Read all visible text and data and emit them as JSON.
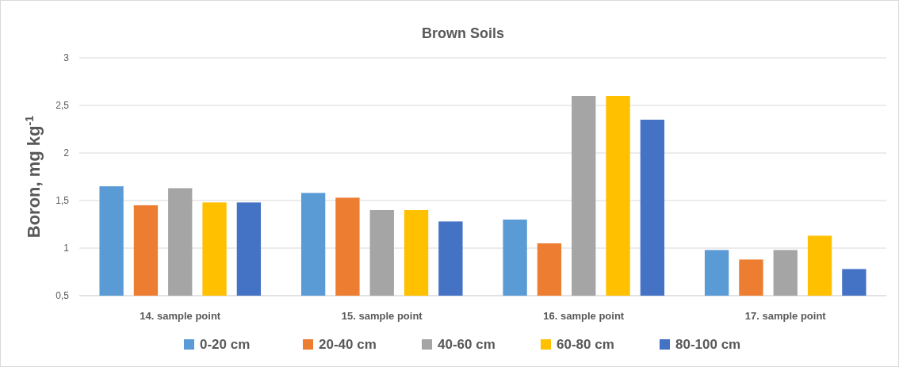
{
  "chart_data": {
    "type": "bar",
    "title": "Brown Soils",
    "ylabel": "Boron, mg kg$^{-1}$",
    "categories": [
      "14. sample point",
      "15. sample point",
      "16. sample point",
      "17. sample point"
    ],
    "series": [
      {
        "name": "0-20 cm",
        "color": "#5b9bd5",
        "values": [
          1.65,
          1.58,
          1.3,
          0.98
        ]
      },
      {
        "name": "20-40 cm",
        "color": "#ed7d31",
        "values": [
          1.45,
          1.53,
          1.05,
          0.88
        ]
      },
      {
        "name": "40-60 cm",
        "color": "#a5a5a5",
        "values": [
          1.63,
          1.4,
          2.6,
          0.98
        ]
      },
      {
        "name": "60-80 cm",
        "color": "#ffc000",
        "values": [
          1.48,
          1.4,
          2.6,
          1.13
        ]
      },
      {
        "name": "80-100 cm",
        "color": "#4472c4",
        "values": [
          1.48,
          1.28,
          2.35,
          0.78
        ]
      }
    ],
    "ylim": [
      0.5,
      3
    ],
    "yticks": [
      {
        "value": 0.5,
        "label": "0,5"
      },
      1,
      {
        "value": 1.5,
        "label": "1,5"
      },
      2,
      {
        "value": 2.5,
        "label": "2,5"
      },
      3
    ],
    "grid": "y",
    "legend": "bottom"
  }
}
